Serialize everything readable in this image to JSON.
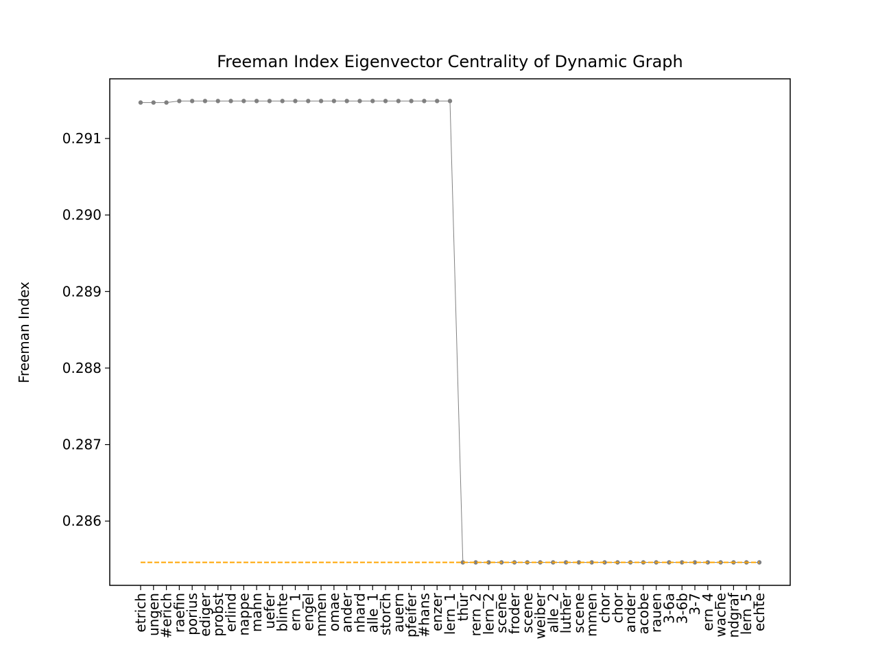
{
  "chart_data": {
    "type": "line",
    "title": "Freeman Index Eigenvector Centrality of Dynamic Graph",
    "xlabel": "",
    "ylabel": "Freeman Index",
    "ylim": [
      0.28516,
      0.29178
    ],
    "yticks": [
      0.286,
      0.287,
      0.288,
      0.289,
      0.29,
      0.291
    ],
    "ytick_labels": [
      "0.286",
      "0.287",
      "0.288",
      "0.289",
      "0.290",
      "0.291"
    ],
    "categories": [
      "etrich",
      "ungen",
      "#erich",
      "raefin",
      "porius",
      "ediger",
      "probst",
      "erlind",
      "nappe",
      "mahn",
      "uefer",
      "blinte",
      "ern_1",
      "engel",
      "mmen",
      "omae",
      "ander",
      "nhard",
      "alle_1",
      "storch",
      "auern",
      "pfeifer",
      "#hans",
      "enzer",
      "lern_1",
      "thur",
      "rern_2",
      "lern_2",
      "scene",
      "froder",
      "scene",
      "weiber",
      "alle_2",
      "luther",
      "scene",
      "mmen",
      "chor",
      "chor",
      "ander",
      "acobe",
      "rauen",
      "3-6a",
      "3-6b",
      "3-7",
      "ern_4",
      "wache",
      "ndgraf",
      "lern_5",
      "echte"
    ],
    "series": [
      {
        "color": "#808080",
        "values": [
          0.29147,
          0.29147,
          0.29147,
          0.29149,
          0.29149,
          0.29149,
          0.29149,
          0.29149,
          0.29149,
          0.29149,
          0.29149,
          0.29149,
          0.29149,
          0.29149,
          0.29149,
          0.29149,
          0.29149,
          0.29149,
          0.29149,
          0.29149,
          0.29149,
          0.29149,
          0.29149,
          0.29149,
          0.29149,
          0.28546,
          0.28546,
          0.28546,
          0.28546,
          0.28546,
          0.28546,
          0.28546,
          0.28546,
          0.28546,
          0.28546,
          0.28546,
          0.28546,
          0.28546,
          0.28546,
          0.28546,
          0.28546,
          0.28546,
          0.28546,
          0.28546,
          0.28546,
          0.28546,
          0.28546,
          0.28546,
          0.28546
        ]
      },
      {
        "color": "#FFA500",
        "style": "dashed",
        "values": [
          0.28546,
          0.28546,
          0.28546,
          0.28546,
          0.28546,
          0.28546,
          0.28546,
          0.28546,
          0.28546,
          0.28546,
          0.28546,
          0.28546,
          0.28546,
          0.28546,
          0.28546,
          0.28546,
          0.28546,
          0.28546,
          0.28546,
          0.28546,
          0.28546,
          0.28546,
          0.28546,
          0.28546,
          0.28546,
          0.28546,
          0.28546,
          0.28546,
          0.28546,
          0.28546,
          0.28546,
          0.28546,
          0.28546,
          0.28546,
          0.28546,
          0.28546,
          0.28546,
          0.28546,
          0.28546,
          0.28546,
          0.28546,
          0.28546,
          0.28546,
          0.28546,
          0.28546,
          0.28546,
          0.28546,
          0.28546,
          0.28546
        ]
      }
    ],
    "grid": false,
    "legend": "none"
  }
}
